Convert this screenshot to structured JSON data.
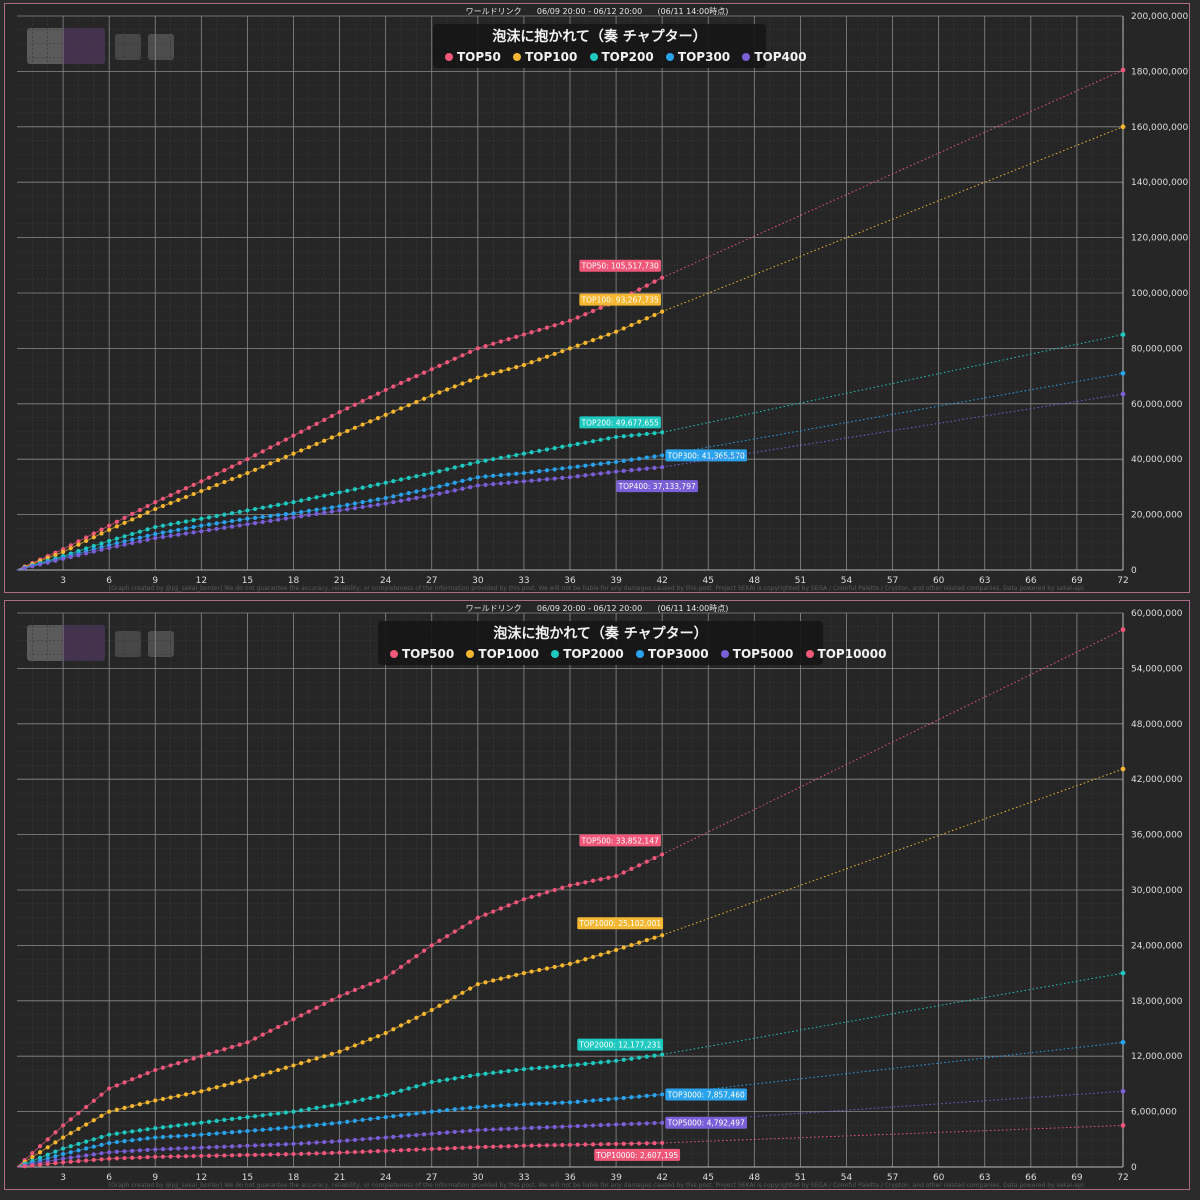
{
  "charts": [
    {
      "header": "ワールドリンク      06/09 20:00 - 06/12 20:00      (06/11 14:00時点)",
      "credit": "[Graph created by @pjj_sekai_border]  We do not guarantee the accuracy, reliability, or completeness of the information provided by this post. We will not be liable for any damages caused by this post. Project SEKAI is copyrighted by SEGA / Colorful Palette / Crypton, and other related companies. Data powered by sekai-api.",
      "legend": {
        "title": "泡沫に抱かれて（奏 チャプター）",
        "items": [
          "TOP50",
          "TOP100",
          "TOP200",
          "TOP300",
          "TOP400"
        ]
      },
      "colors": [
        "#f0587a",
        "#f5b731",
        "#1fc9bf",
        "#2aa3ec",
        "#7a5fd8"
      ]
    },
    {
      "header": "ワールドリンク      06/09 20:00 - 06/12 20:00      (06/11 14:00時点)",
      "credit": "[Graph created by @pjj_sekai_border]  We do not guarantee the accuracy, reliability, or completeness of the information provided by this post. We will not be liable for any damages caused by this post. Project SEKAI is copyrighted by SEGA / Colorful Palette / Crypton, and other related companies. Data powered by sekai-api.",
      "legend": {
        "title": "泡沫に抱かれて（奏 チャプター）",
        "items": [
          "TOP500",
          "TOP1000",
          "TOP2000",
          "TOP3000",
          "TOP5000",
          "TOP10000"
        ]
      },
      "colors": [
        "#f0587a",
        "#f5b731",
        "#1fc9bf",
        "#2aa3ec",
        "#7a5fd8",
        "#f0587a"
      ]
    }
  ],
  "chart_data": [
    {
      "type": "line",
      "x_ticks": [
        3,
        6,
        9,
        12,
        15,
        18,
        21,
        24,
        27,
        30,
        33,
        36,
        39,
        42,
        45,
        48,
        51,
        54,
        57,
        60,
        63,
        66,
        69,
        72
      ],
      "y_ticks": [
        "0",
        "20,000,000",
        "40,000,000",
        "60,000,000",
        "80,000,000",
        "100,000,000",
        "120,000,000",
        "140,000,000",
        "160,000,000",
        "180,000,000",
        "200,000,000"
      ],
      "xlim": [
        0,
        72
      ],
      "ylim": [
        0,
        200000000
      ],
      "grid": true,
      "legend_position": "top-center",
      "series": [
        {
          "name": "TOP50",
          "label": "TOP50: 105,517,730",
          "points": [
            [
              0,
              0
            ],
            [
              3,
              7500000
            ],
            [
              6,
              16000000
            ],
            [
              9,
              24500000
            ],
            [
              12,
              32000000
            ],
            [
              15,
              40000000
            ],
            [
              18,
              48500000
            ],
            [
              21,
              57000000
            ],
            [
              24,
              65000000
            ],
            [
              27,
              72500000
            ],
            [
              30,
              80000000
            ],
            [
              33,
              85000000
            ],
            [
              36,
              90000000
            ],
            [
              39,
              97000000
            ],
            [
              42,
              105517730
            ]
          ],
          "projection": [
            [
              42,
              105517730
            ],
            [
              72,
              180500000
            ]
          ]
        },
        {
          "name": "TOP100",
          "label": "TOP100: 93,267,735",
          "points": [
            [
              0,
              0
            ],
            [
              3,
              6500000
            ],
            [
              6,
              14500000
            ],
            [
              9,
              22000000
            ],
            [
              12,
              28500000
            ],
            [
              15,
              35000000
            ],
            [
              18,
              42000000
            ],
            [
              21,
              49000000
            ],
            [
              24,
              56000000
            ],
            [
              27,
              63000000
            ],
            [
              30,
              69500000
            ],
            [
              33,
              74000000
            ],
            [
              36,
              80000000
            ],
            [
              39,
              86000000
            ],
            [
              42,
              93267735
            ]
          ],
          "projection": [
            [
              42,
              93267735
            ],
            [
              72,
              160000000
            ]
          ]
        },
        {
          "name": "TOP200",
          "label": "TOP200: 49,677,655",
          "points": [
            [
              0,
              0
            ],
            [
              3,
              5000000
            ],
            [
              6,
              10500000
            ],
            [
              9,
              15500000
            ],
            [
              12,
              18500000
            ],
            [
              15,
              21500000
            ],
            [
              18,
              24500000
            ],
            [
              21,
              28000000
            ],
            [
              24,
              31500000
            ],
            [
              27,
              35000000
            ],
            [
              30,
              39000000
            ],
            [
              33,
              42000000
            ],
            [
              36,
              45000000
            ],
            [
              39,
              48000000
            ],
            [
              42,
              49677655
            ]
          ],
          "projection": [
            [
              42,
              49677655
            ],
            [
              72,
              85000000
            ]
          ]
        },
        {
          "name": "TOP300",
          "label": "TOP300: 41,365,570",
          "points": [
            [
              0,
              0
            ],
            [
              3,
              4500000
            ],
            [
              6,
              9000000
            ],
            [
              9,
              13000000
            ],
            [
              12,
              16000000
            ],
            [
              15,
              18500000
            ],
            [
              18,
              20500000
            ],
            [
              21,
              23000000
            ],
            [
              24,
              26000000
            ],
            [
              27,
              29500000
            ],
            [
              30,
              33500000
            ],
            [
              33,
              35000000
            ],
            [
              36,
              37000000
            ],
            [
              39,
              39000000
            ],
            [
              42,
              41365570
            ]
          ],
          "projection": [
            [
              42,
              41365570
            ],
            [
              72,
              71000000
            ]
          ]
        },
        {
          "name": "TOP400",
          "label": "TOP400: 37,133,797",
          "points": [
            [
              0,
              0
            ],
            [
              3,
              4000000
            ],
            [
              6,
              8000000
            ],
            [
              9,
              11500000
            ],
            [
              12,
              14000000
            ],
            [
              15,
              16500000
            ],
            [
              18,
              19000000
            ],
            [
              21,
              21500000
            ],
            [
              24,
              24000000
            ],
            [
              27,
              27000000
            ],
            [
              30,
              30500000
            ],
            [
              33,
              32000000
            ],
            [
              36,
              33500000
            ],
            [
              39,
              35500000
            ],
            [
              42,
              37133797
            ]
          ],
          "projection": [
            [
              42,
              37133797
            ],
            [
              72,
              63500000
            ]
          ]
        }
      ]
    },
    {
      "type": "line",
      "x_ticks": [
        3,
        6,
        9,
        12,
        15,
        18,
        21,
        24,
        27,
        30,
        33,
        36,
        39,
        42,
        45,
        48,
        51,
        54,
        57,
        60,
        63,
        66,
        69,
        72
      ],
      "y_ticks": [
        "0",
        "6,000,000",
        "12,000,000",
        "18,000,000",
        "24,000,000",
        "30,000,000",
        "36,000,000",
        "42,000,000",
        "48,000,000",
        "54,000,000",
        "60,000,000"
      ],
      "xlim": [
        0,
        72
      ],
      "ylim": [
        0,
        60000000
      ],
      "grid": true,
      "legend_position": "top-center",
      "series": [
        {
          "name": "TOP500",
          "label": "TOP500: 33,852,147",
          "points": [
            [
              0,
              0
            ],
            [
              3,
              4500000
            ],
            [
              6,
              8500000
            ],
            [
              9,
              10500000
            ],
            [
              12,
              12000000
            ],
            [
              15,
              13500000
            ],
            [
              18,
              16000000
            ],
            [
              21,
              18500000
            ],
            [
              24,
              20500000
            ],
            [
              27,
              24000000
            ],
            [
              30,
              27000000
            ],
            [
              33,
              29000000
            ],
            [
              36,
              30500000
            ],
            [
              39,
              31500000
            ],
            [
              42,
              33852147
            ]
          ],
          "projection": [
            [
              42,
              33852147
            ],
            [
              72,
              58200000
            ]
          ]
        },
        {
          "name": "TOP1000",
          "label": "TOP1000: 25,102,001",
          "points": [
            [
              0,
              0
            ],
            [
              3,
              3200000
            ],
            [
              6,
              6000000
            ],
            [
              9,
              7200000
            ],
            [
              12,
              8200000
            ],
            [
              15,
              9500000
            ],
            [
              18,
              11000000
            ],
            [
              21,
              12500000
            ],
            [
              24,
              14500000
            ],
            [
              27,
              17000000
            ],
            [
              30,
              19800000
            ],
            [
              33,
              21000000
            ],
            [
              36,
              22000000
            ],
            [
              39,
              23500000
            ],
            [
              42,
              25102001
            ]
          ],
          "projection": [
            [
              42,
              25102001
            ],
            [
              72,
              43100000
            ]
          ]
        },
        {
          "name": "TOP2000",
          "label": "TOP2000: 12,177,231",
          "points": [
            [
              0,
              0
            ],
            [
              3,
              2000000
            ],
            [
              6,
              3500000
            ],
            [
              9,
              4200000
            ],
            [
              12,
              4800000
            ],
            [
              15,
              5400000
            ],
            [
              18,
              6000000
            ],
            [
              21,
              6800000
            ],
            [
              24,
              7800000
            ],
            [
              27,
              9200000
            ],
            [
              30,
              10000000
            ],
            [
              33,
              10600000
            ],
            [
              36,
              11000000
            ],
            [
              39,
              11500000
            ],
            [
              42,
              12177231
            ]
          ],
          "projection": [
            [
              42,
              12177231
            ],
            [
              72,
              21000000
            ]
          ]
        },
        {
          "name": "TOP3000",
          "label": "TOP3000: 7,857,460",
          "points": [
            [
              0,
              0
            ],
            [
              3,
              1400000
            ],
            [
              6,
              2600000
            ],
            [
              9,
              3200000
            ],
            [
              12,
              3500000
            ],
            [
              15,
              3900000
            ],
            [
              18,
              4300000
            ],
            [
              21,
              4800000
            ],
            [
              24,
              5400000
            ],
            [
              27,
              6000000
            ],
            [
              30,
              6500000
            ],
            [
              33,
              6800000
            ],
            [
              36,
              7000000
            ],
            [
              39,
              7400000
            ],
            [
              42,
              7857460
            ]
          ],
          "projection": [
            [
              42,
              7857460
            ],
            [
              72,
              13500000
            ]
          ]
        },
        {
          "name": "TOP5000",
          "label": "TOP5000: 4,792,497",
          "points": [
            [
              0,
              0
            ],
            [
              3,
              900000
            ],
            [
              6,
              1600000
            ],
            [
              9,
              1900000
            ],
            [
              12,
              2100000
            ],
            [
              15,
              2300000
            ],
            [
              18,
              2500000
            ],
            [
              21,
              2800000
            ],
            [
              24,
              3200000
            ],
            [
              27,
              3600000
            ],
            [
              30,
              4000000
            ],
            [
              33,
              4200000
            ],
            [
              36,
              4400000
            ],
            [
              39,
              4600000
            ],
            [
              42,
              4792497
            ]
          ],
          "projection": [
            [
              42,
              4792497
            ],
            [
              72,
              8200000
            ]
          ]
        },
        {
          "name": "TOP10000",
          "label": "TOP10000: 2,607,195",
          "points": [
            [
              0,
              0
            ],
            [
              3,
              500000
            ],
            [
              6,
              900000
            ],
            [
              9,
              1100000
            ],
            [
              12,
              1200000
            ],
            [
              15,
              1300000
            ],
            [
              18,
              1400000
            ],
            [
              21,
              1550000
            ],
            [
              24,
              1750000
            ],
            [
              27,
              1950000
            ],
            [
              30,
              2150000
            ],
            [
              33,
              2300000
            ],
            [
              36,
              2400000
            ],
            [
              39,
              2500000
            ],
            [
              42,
              2607195
            ]
          ],
          "projection": [
            [
              42,
              2607195
            ],
            [
              72,
              4500000
            ]
          ]
        }
      ]
    }
  ]
}
